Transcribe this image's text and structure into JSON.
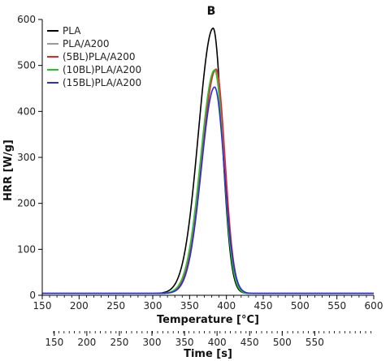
{
  "chart_data": {
    "type": "line",
    "title": "B",
    "ylabel": "HRR [W/g]",
    "xlabel": "Temperature [°C]",
    "xlabel2": "Time [s]",
    "xlim": [
      150,
      600
    ],
    "ylim": [
      0,
      600
    ],
    "x_ticks": [
      150,
      200,
      250,
      300,
      350,
      400,
      450,
      500,
      550,
      600
    ],
    "y_ticks": [
      0,
      100,
      200,
      300,
      400,
      500,
      600
    ],
    "x2_ticks": [
      150,
      200,
      250,
      300,
      350,
      400,
      450,
      500,
      550
    ],
    "x2_tick_positions_temp": [
      166.3,
      210.5,
      254.7,
      298.9,
      343.1,
      387.3,
      431.5,
      475.7,
      519.9
    ],
    "grid": false,
    "legend_position": "top-left",
    "series": [
      {
        "name": "PLA",
        "color": "#000000",
        "peak_x": 382,
        "peak": 581,
        "sl": 20,
        "sr": 12
      },
      {
        "name": "PLA/A200",
        "color": "#999999",
        "peak_x": 385,
        "peak": 490,
        "sl": 19,
        "sr": 12
      },
      {
        "name": "(5BL)PLA/A200",
        "color": "#e8232b",
        "peak_x": 386,
        "peak": 492,
        "sl": 19,
        "sr": 12
      },
      {
        "name": "(10BL)PLA/A200",
        "color": "#22c42a",
        "peak_x": 384,
        "peak": 490,
        "sl": 19,
        "sr": 12
      },
      {
        "name": "(15BL)PLA/A200",
        "color": "#2b2be0",
        "peak_x": 384,
        "peak": 453,
        "sl": 18,
        "sr": 13
      }
    ]
  }
}
